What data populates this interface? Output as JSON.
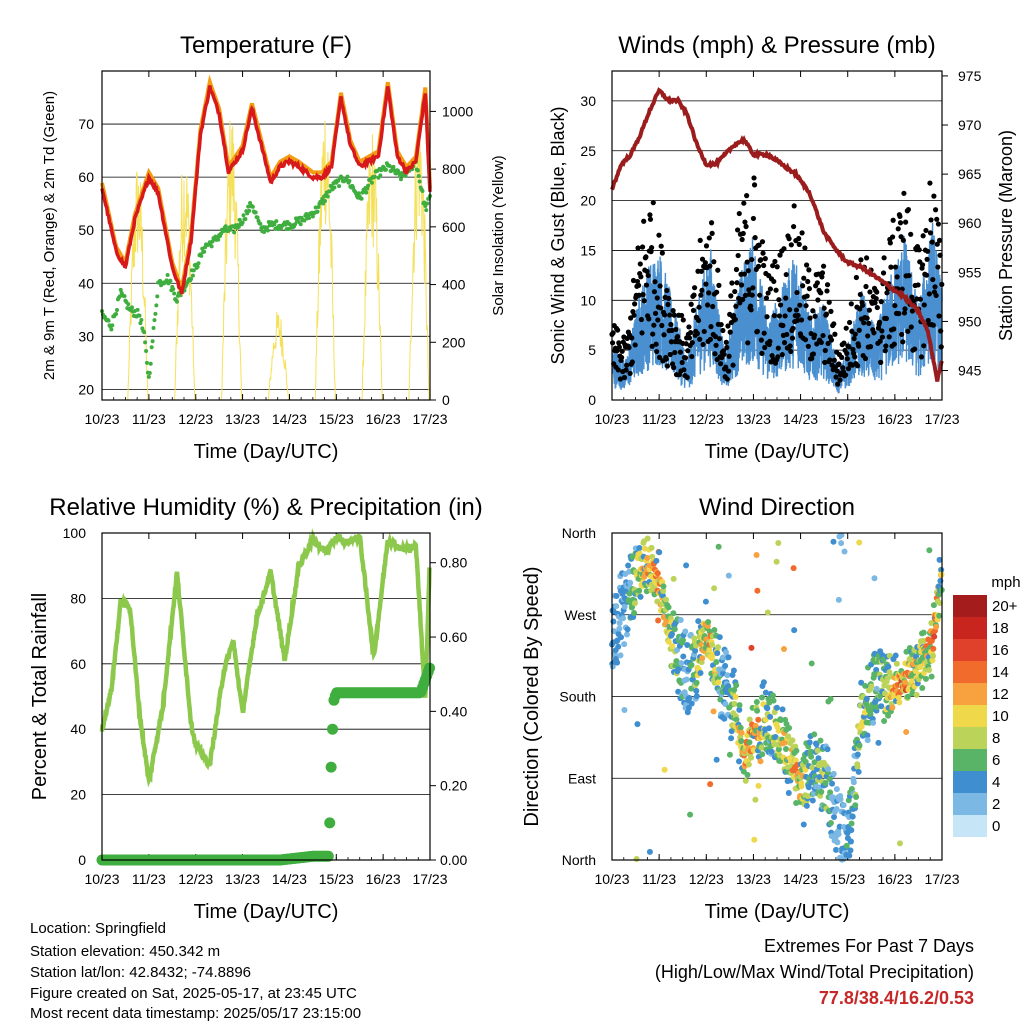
{
  "footer": {
    "location": "Location: Springfield",
    "elevation": "Station elevation: 450.342 m",
    "latlon": "Station lat/lon: 42.8432; -74.8896",
    "created": "Figure created on Sat, 2025-05-17, at 23:45 UTC",
    "recent": "Most recent data timestamp: 2025/05/17 23:15:00",
    "extremes_title": "Extremes For Past 7 Days",
    "extremes_subtitle": "(High/Low/Max Wind/Total Precipitation)",
    "extremes_values": "77.8/38.4/16.2/0.53"
  },
  "colors": {
    "temp": "#d7191c",
    "temp9": "#f39c12",
    "dew": "#3fae3f",
    "solar": "#f5e05a",
    "wind": "#4a90d0",
    "gust": "#000000",
    "pressure": "#9b1c1c",
    "rh": "#8cc84b",
    "precip": "#3fae3f"
  },
  "chart_data": [
    {
      "id": "temperature",
      "type": "line",
      "title": "Temperature (F)",
      "xlabel": "Time (Day/UTC)",
      "ylabel_left": "2m & 9m T (Red, Orange) & 2m Td (Green)",
      "ylabel_right": "Solar Insolation (Yellow)",
      "x_ticks": [
        "10/23",
        "11/23",
        "12/23",
        "13/23",
        "14/23",
        "15/23",
        "16/23",
        "17/23"
      ],
      "xlim": [
        10,
        17
      ],
      "ylim_left": [
        18,
        80
      ],
      "y_ticks_left": [
        20,
        30,
        40,
        50,
        60,
        70
      ],
      "ylim_right": [
        0,
        1140
      ],
      "y_ticks_right": [
        0,
        200,
        400,
        600,
        800,
        1000
      ],
      "grid": true,
      "series": [
        {
          "key": "t2m",
          "x": [
            10.0,
            10.3,
            10.5,
            10.7,
            11.0,
            11.2,
            11.5,
            11.7,
            11.9,
            12.1,
            12.3,
            12.5,
            12.7,
            13.0,
            13.2,
            13.4,
            13.6,
            13.8,
            14.0,
            14.2,
            14.5,
            14.7,
            14.9,
            15.1,
            15.3,
            15.5,
            15.7,
            15.9,
            16.1,
            16.3,
            16.5,
            16.7,
            16.9,
            17.0
          ],
          "y": [
            58,
            46,
            43,
            52,
            60,
            57,
            43,
            38,
            48,
            68,
            77,
            72,
            61,
            65,
            73,
            66,
            59,
            62,
            63,
            62,
            60,
            60,
            62,
            75,
            66,
            62,
            63,
            64,
            77,
            64,
            61,
            63,
            76,
            57
          ]
        },
        {
          "key": "td2m",
          "x": [
            10.0,
            10.2,
            10.4,
            10.6,
            10.8,
            10.9,
            11.0,
            11.2,
            11.4,
            11.6,
            11.8,
            12.0,
            12.2,
            12.4,
            12.6,
            12.8,
            13.0,
            13.2,
            13.4,
            13.6,
            13.8,
            14.0,
            14.3,
            14.6,
            14.9,
            15.2,
            15.5,
            15.8,
            16.1,
            16.4,
            16.7,
            16.9,
            17.0
          ],
          "y": [
            34,
            32,
            38,
            35,
            34,
            30,
            22,
            40,
            41,
            37,
            40,
            43,
            47,
            48,
            50,
            50,
            52,
            55,
            50,
            51,
            51,
            51,
            52,
            54,
            58,
            60,
            56,
            60,
            62,
            60,
            63,
            54,
            56
          ]
        },
        {
          "key": "solar_peaks",
          "days": [
            10.0,
            10.8,
            11.8,
            12.8,
            13.8,
            14.8,
            15.8,
            16.8
          ],
          "peaks": [
            0,
            850,
            900,
            1030,
            320,
            1080,
            960,
            1060
          ]
        }
      ]
    },
    {
      "id": "wind",
      "type": "line",
      "title": "Winds (mph) & Pressure (mb)",
      "xlabel": "Time (Day/UTC)",
      "ylabel_left": "Sonic Wind & Gust (Blue, Black)",
      "ylabel_right": "Station Pressure (Maroon)",
      "x_ticks": [
        "10/23",
        "11/23",
        "12/23",
        "13/23",
        "14/23",
        "15/23",
        "16/23",
        "17/23"
      ],
      "xlim": [
        10,
        17
      ],
      "ylim_left": [
        0,
        33
      ],
      "y_ticks_left": [
        0,
        5,
        10,
        15,
        20,
        25,
        30
      ],
      "ylim_right": [
        942,
        975.5
      ],
      "y_ticks_right": [
        945,
        950,
        955,
        960,
        965,
        970,
        975
      ],
      "grid": true,
      "series": [
        {
          "key": "wind_mean",
          "x": [
            10.0,
            10.3,
            10.6,
            10.8,
            11.0,
            11.3,
            11.6,
            11.9,
            12.1,
            12.4,
            12.7,
            13.0,
            13.3,
            13.6,
            13.9,
            14.2,
            14.5,
            14.8,
            15.0,
            15.3,
            15.6,
            15.9,
            16.2,
            16.5,
            16.8,
            17.0
          ],
          "y": [
            4,
            3,
            8,
            10,
            11,
            7,
            3,
            9,
            11,
            3,
            9,
            12,
            6,
            8,
            11,
            6,
            7,
            2,
            4,
            8,
            5,
            9,
            12,
            7,
            13,
            8
          ]
        },
        {
          "key": "gust_peaks",
          "x": [
            10.0,
            10.3,
            10.6,
            10.8,
            11.0,
            11.3,
            11.6,
            11.9,
            12.1,
            12.4,
            12.7,
            13.0,
            13.3,
            13.6,
            13.9,
            14.2,
            14.5,
            14.8,
            15.0,
            15.3,
            15.6,
            15.9,
            16.2,
            16.5,
            16.8,
            17.0
          ],
          "y": [
            8,
            6,
            18,
            22,
            17,
            11,
            7,
            17,
            20,
            6,
            19,
            24,
            13,
            16,
            20,
            13,
            14,
            5,
            8,
            16,
            12,
            17,
            22,
            15,
            25,
            14
          ]
        },
        {
          "key": "pressure",
          "x": [
            10.0,
            10.2,
            10.4,
            10.6,
            10.8,
            10.9,
            11.0,
            11.2,
            11.4,
            11.6,
            11.8,
            12.0,
            12.2,
            12.4,
            12.6,
            12.8,
            13.0,
            13.3,
            13.6,
            13.9,
            14.2,
            14.5,
            14.8,
            15.0,
            15.3,
            15.6,
            15.9,
            16.2,
            16.5,
            16.7,
            16.9,
            17.0
          ],
          "y": [
            963.5,
            966,
            967,
            969,
            971.5,
            972.5,
            973.5,
            972.5,
            972.5,
            971,
            968,
            966,
            966,
            967,
            968,
            968.5,
            967,
            967,
            966,
            965,
            963,
            959,
            957,
            956,
            955.5,
            954.5,
            953.5,
            952.5,
            951,
            949,
            944,
            946
          ]
        }
      ]
    },
    {
      "id": "humidity",
      "type": "line",
      "title": "Relative Humidity (%) & Precipitation (in)",
      "xlabel": "Time (Day/UTC)",
      "ylabel_left": "Percent & Total Rainfall",
      "x_ticks": [
        "10/23",
        "11/23",
        "12/23",
        "13/23",
        "14/23",
        "15/23",
        "16/23",
        "17/23"
      ],
      "xlim": [
        10,
        17
      ],
      "ylim_left": [
        0,
        100
      ],
      "y_ticks_left": [
        0,
        20,
        40,
        60,
        80,
        100
      ],
      "ylim_right": [
        0,
        0.88
      ],
      "y_ticks_right": [
        "0.00",
        "0.20",
        "0.40",
        "0.60",
        "0.80"
      ],
      "grid": true,
      "series": [
        {
          "key": "rh",
          "x": [
            10.0,
            10.2,
            10.4,
            10.6,
            10.8,
            11.0,
            11.3,
            11.6,
            11.9,
            12.0,
            12.3,
            12.6,
            12.8,
            13.0,
            13.3,
            13.6,
            13.9,
            14.2,
            14.5,
            14.8,
            15.0,
            15.2,
            15.5,
            15.8,
            16.1,
            16.4,
            16.7,
            16.9,
            17.0
          ],
          "y": [
            40,
            52,
            79,
            77,
            45,
            24,
            47,
            88,
            42,
            35,
            29,
            58,
            67,
            45,
            74,
            88,
            61,
            90,
            98,
            94,
            99,
            97,
            99,
            62,
            98,
            95,
            96,
            49,
            94
          ]
        },
        {
          "key": "precip",
          "x": [
            10.0,
            12.0,
            13.0,
            13.8,
            14.5,
            14.85,
            14.86,
            14.9,
            14.95,
            15.0,
            16.0,
            16.8,
            17.0
          ],
          "y": [
            0.0,
            0.0,
            0.0,
            0.0,
            0.01,
            0.01,
            0.1,
            0.3,
            0.43,
            0.45,
            0.45,
            0.45,
            0.52
          ]
        }
      ]
    },
    {
      "id": "direction",
      "type": "scatter",
      "title": "Wind Direction",
      "xlabel": "Time (Day/UTC)",
      "ylabel_left": "Direction (Colored By Speed)",
      "x_ticks": [
        "10/23",
        "11/23",
        "12/23",
        "13/23",
        "14/23",
        "15/23",
        "16/23",
        "17/23"
      ],
      "xlim": [
        10,
        17
      ],
      "y_ticks_left": [
        "North",
        "East",
        "South",
        "West",
        "North"
      ],
      "ylim_left": [
        0,
        360
      ],
      "grid": true,
      "legend_title": "mph",
      "legend_labels": [
        "20+",
        "18",
        "16",
        "14",
        "12",
        "10",
        "8",
        "6",
        "4",
        "2",
        "0"
      ],
      "legend_colors": [
        "#a51c1c",
        "#c9251f",
        "#e0412a",
        "#f06b2c",
        "#f7a23e",
        "#f0d84b",
        "#bcd35a",
        "#5ab467",
        "#3f8ed0",
        "#7bb8e3",
        "#c6e6f7"
      ],
      "series": [
        {
          "key": "dir_track",
          "x": [
            10.0,
            10.3,
            10.6,
            10.8,
            11.0,
            11.3,
            11.6,
            11.9,
            12.0,
            12.3,
            12.6,
            12.8,
            13.0,
            13.3,
            13.5,
            13.8,
            14.0,
            14.3,
            14.6,
            14.8,
            15.0,
            15.3,
            15.6,
            15.9,
            16.2,
            16.5,
            16.8,
            17.0
          ],
          "y": [
            240,
            290,
            320,
            330,
            300,
            240,
            200,
            230,
            250,
            200,
            170,
            110,
            140,
            160,
            140,
            110,
            80,
            110,
            80,
            40,
            20,
            160,
            200,
            180,
            200,
            210,
            240,
            320
          ]
        }
      ]
    }
  ]
}
